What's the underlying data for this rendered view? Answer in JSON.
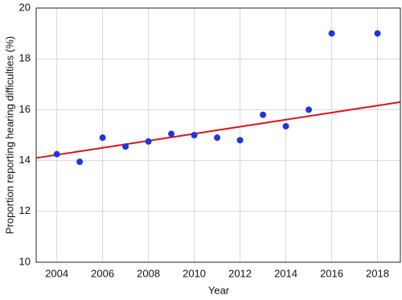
{
  "chart_data": {
    "type": "scatter",
    "xlabel": "Year",
    "ylabel": "Proportion reporting hearing difficulties (%)",
    "x": [
      2004,
      2005,
      2006,
      2007,
      2008,
      2009,
      2010,
      2011,
      2012,
      2013,
      2014,
      2015,
      2016,
      2018
    ],
    "values": [
      14.25,
      13.95,
      14.9,
      14.55,
      14.75,
      15.05,
      15.0,
      14.9,
      14.8,
      15.8,
      15.35,
      16.0,
      19.0,
      19.0
    ],
    "color": "#1f35e0",
    "fit": {
      "x": [
        2003.1,
        2019
      ],
      "values": [
        14.1,
        16.3
      ],
      "color": "#e01010"
    },
    "xlim": [
      2003.1,
      2019
    ],
    "xticks": [
      2004,
      2006,
      2008,
      2010,
      2012,
      2014,
      2016,
      2018
    ],
    "ylim": [
      10,
      20
    ],
    "yticks": [
      10,
      12,
      14,
      16,
      18,
      20
    ],
    "grid": true
  }
}
